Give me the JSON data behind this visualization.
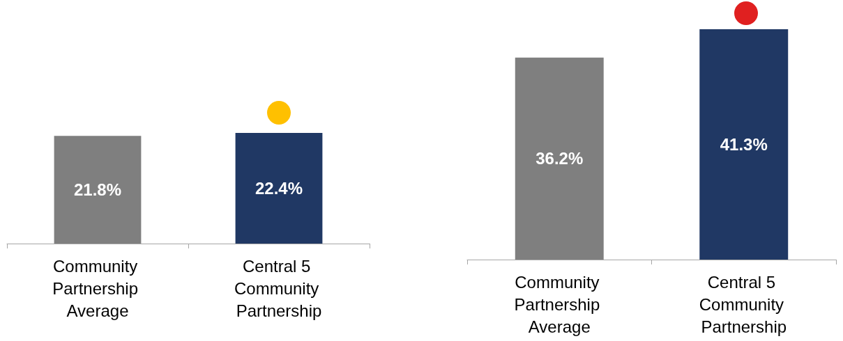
{
  "chart_data": [
    {
      "type": "bar",
      "categories": [
        "Community Partnership Average",
        "Central 5 Community Partnership"
      ],
      "values": [
        21.8,
        22.4
      ],
      "value_labels": [
        "21.8%",
        "22.4%"
      ],
      "colors": [
        "#7f7f7f",
        "#203864"
      ],
      "tick_labels": "x"
    },
    {
      "type": "bar",
      "categories": [
        "Community Partnership Average",
        "Central 5 Community Partnership"
      ],
      "values": [
        36.2,
        41.3
      ],
      "value_labels": [
        "36.2%",
        "41.3%"
      ],
      "colors": [
        "#7f7f7f",
        "#203864"
      ],
      "tick_labels": "x"
    }
  ]
}
